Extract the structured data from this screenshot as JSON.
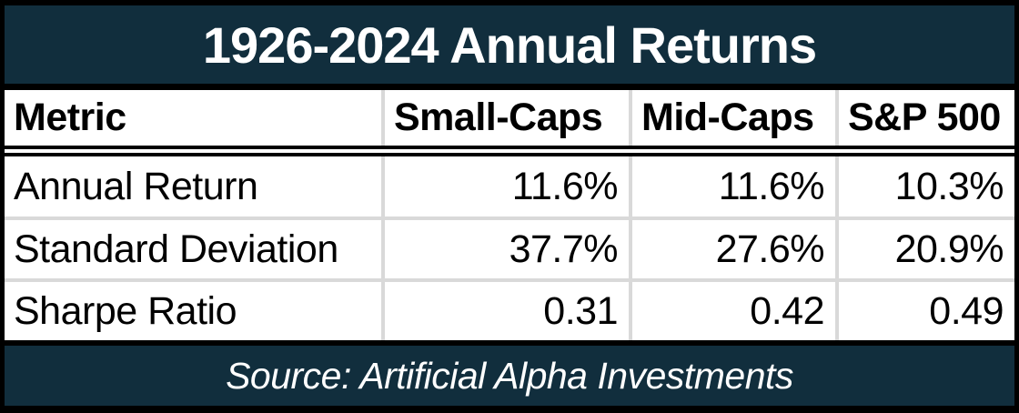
{
  "title_bar": {
    "text": "1926-2024 Annual Returns"
  },
  "footer_bar": {
    "text": "Source: Artificial Alpha Investments"
  },
  "chart_data": {
    "type": "table",
    "title": "1926-2024 Annual Returns",
    "columns": [
      "Metric",
      "Small-Caps",
      "Mid-Caps",
      "S&P 500"
    ],
    "rows": [
      [
        "Annual Return",
        "11.6%",
        "11.6%",
        "10.3%"
      ],
      [
        "Standard Deviation",
        "37.7%",
        "27.6%",
        "20.9%"
      ],
      [
        "Sharpe Ratio",
        "0.31",
        "0.42",
        "0.49"
      ]
    ],
    "source": "Source: Artificial Alpha Investments",
    "layout": {
      "header_position": "top",
      "metric_column_align": "left",
      "value_columns_align": "right",
      "gridlines": true
    }
  },
  "colors": {
    "band_bg": "#112e3d",
    "band_text": "#ffffff",
    "frame_border": "#000000",
    "gridline": "#d9d9d9",
    "cell_bg": "#ffffff",
    "cell_text": "#000000"
  }
}
